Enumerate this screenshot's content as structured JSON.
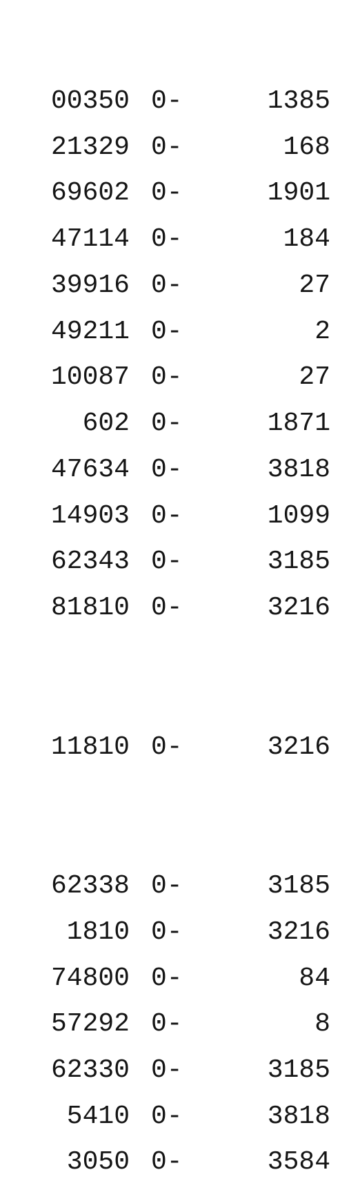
{
  "rows": [
    {
      "id": "00350",
      "mid": "0-",
      "num": "1385"
    },
    {
      "id": "21329",
      "mid": "0-",
      "num": "168"
    },
    {
      "id": "69602",
      "mid": "0-",
      "num": "1901"
    },
    {
      "id": "47114",
      "mid": "0-",
      "num": "184"
    },
    {
      "id": "39916",
      "mid": "0-",
      "num": "27"
    },
    {
      "id": "49211",
      "mid": "0-",
      "num": "2"
    },
    {
      "id": "10087",
      "mid": "0-",
      "num": "27"
    },
    {
      "id": "602",
      "mid": "0-",
      "num": "1871"
    },
    {
      "id": "47634",
      "mid": "0-",
      "num": "3818"
    },
    {
      "id": "14903",
      "mid": "0-",
      "num": "1099"
    },
    {
      "id": "62343",
      "mid": "0-",
      "num": "3185"
    },
    {
      "id": "81810",
      "mid": "0-",
      "num": "3216"
    },
    {
      "id": "11810",
      "mid": "0-",
      "num": "3216"
    },
    {
      "id": "62338",
      "mid": "0-",
      "num": "3185"
    },
    {
      "id": "1810",
      "mid": "0-",
      "num": "3216"
    },
    {
      "id": "74800",
      "mid": "0-",
      "num": "84"
    },
    {
      "id": "57292",
      "mid": "0-",
      "num": "8"
    },
    {
      "id": "62330",
      "mid": "0-",
      "num": "3185"
    },
    {
      "id": "5410",
      "mid": "0-",
      "num": "3818"
    },
    {
      "id": "3050",
      "mid": "0-",
      "num": "3584"
    }
  ]
}
